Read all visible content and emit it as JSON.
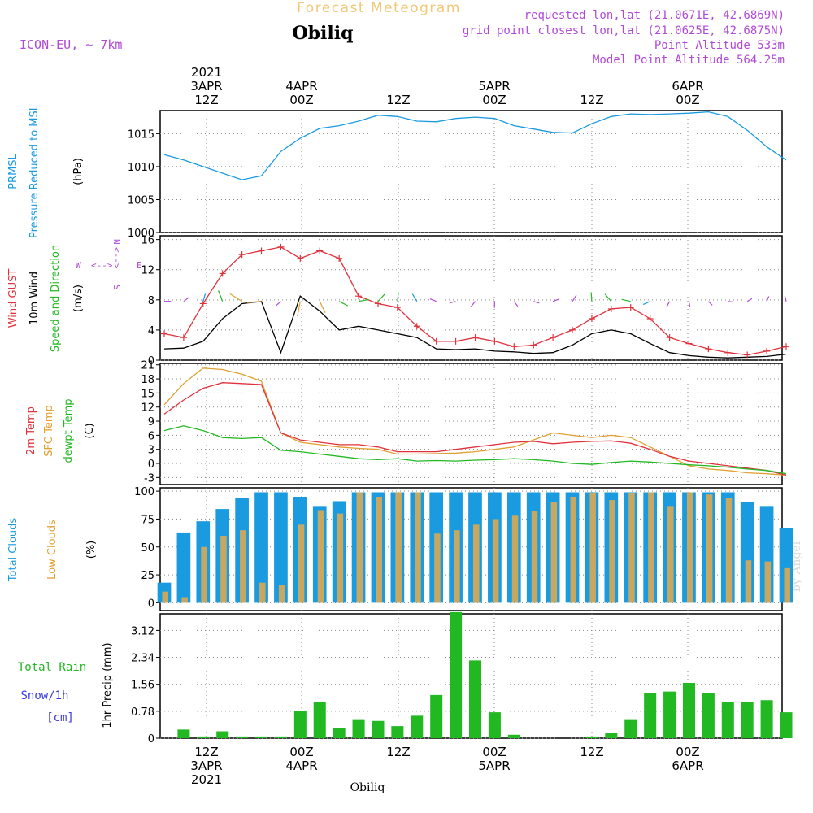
{
  "header": {
    "title": "Forecast Meteogram",
    "location": "Obiliq",
    "model": "ICON-EU, ~ 7km",
    "requested": "requested lon,lat (21.0671E, 42.6869N)",
    "gridpoint": "grid point closest lon,lat (21.0625E, 42.6875N)",
    "point_altitude": "Point Altitude 533m",
    "model_altitude": "Model Point Altitude 564.25m",
    "watermark": "by Angel",
    "footer_location": "Obiliq"
  },
  "time_axis": {
    "top": [
      {
        "lines": [
          "2021",
          "3APR",
          "12Z"
        ]
      },
      {
        "lines": [
          "4APR",
          "00Z"
        ]
      },
      {
        "lines": [
          "12Z"
        ]
      },
      {
        "lines": [
          "5APR",
          "00Z"
        ]
      },
      {
        "lines": [
          "12Z"
        ]
      },
      {
        "lines": [
          "6APR",
          "00Z"
        ]
      }
    ],
    "bottom": [
      {
        "lines": [
          "12Z",
          "3APR",
          "2021"
        ]
      },
      {
        "lines": [
          "00Z",
          "4APR"
        ]
      },
      {
        "lines": [
          "12Z"
        ]
      },
      {
        "lines": [
          "00Z",
          "5APR"
        ]
      },
      {
        "lines": [
          "12Z"
        ]
      },
      {
        "lines": [
          "00Z",
          "6APR"
        ]
      }
    ]
  },
  "panels": {
    "pressure": {
      "labels": [
        {
          "text": "PRMSL",
          "color": "#1a9be0"
        },
        {
          "text": "Pressure Reduced to MSL",
          "color": "#1a9be0"
        },
        {
          "text": "(hPa)",
          "color": "#000000"
        }
      ],
      "ticks": [
        "1000",
        "1005",
        "1010",
        "1015"
      ]
    },
    "wind": {
      "labels": [
        {
          "text": "Wind GUST",
          "color": "#e0323c"
        },
        {
          "text": "10m Wind",
          "color": "#000000"
        },
        {
          "text": "Speed and Direction",
          "color": "#22b822"
        },
        {
          "text": "(m/s)",
          "color": "#000000"
        }
      ],
      "ticks": [
        "0",
        "4",
        "8",
        "12",
        "16"
      ],
      "compass": {
        "n": "N",
        "s": "S",
        "e": "E",
        "w": "W"
      }
    },
    "temp": {
      "labels": [
        {
          "text": "2m Temp",
          "color": "#e0323c"
        },
        {
          "text": "SFC Temp",
          "color": "#e0a030"
        },
        {
          "text": "dewpt Temp",
          "color": "#22b822"
        },
        {
          "text": "(C)",
          "color": "#000000"
        }
      ],
      "ticks": [
        "-3",
        "0",
        "3",
        "6",
        "9",
        "12",
        "15",
        "18",
        "21"
      ]
    },
    "clouds": {
      "labels": [
        {
          "text": "Total Clouds",
          "color": "#1a9be0"
        },
        {
          "text": "Low Clouds",
          "color": "#e0a030"
        },
        {
          "text": "(%)",
          "color": "#000000"
        }
      ],
      "ticks": [
        "0",
        "25",
        "50",
        "75",
        "100"
      ]
    },
    "precip": {
      "labels": [
        {
          "text": "Total   Rain",
          "color": "#22b822"
        },
        {
          "text": "Snow/1h",
          "color": "#3a3ae0"
        },
        {
          "text": "[cm]",
          "color": "#3a3ae0"
        },
        {
          "text": "1hr Precip (mm)",
          "color": "#000000"
        }
      ],
      "ticks": [
        "0",
        "0.78",
        "1.56",
        "2.34",
        "3.12"
      ]
    }
  },
  "colors": {
    "blue": "#1a9be0",
    "red": "#e0323c",
    "orange": "#e0a030",
    "green": "#22b822",
    "purple": "#b04ad8",
    "black": "#000000"
  },
  "chart_data": [
    {
      "type": "line",
      "title": "",
      "ylabel": "PRMSL Pressure Reduced to MSL (hPa)",
      "ylim": [
        1000,
        1018
      ],
      "x_hours": [
        0,
        3,
        6,
        9,
        12,
        15,
        18,
        21,
        24,
        27,
        30,
        33,
        36,
        39,
        42,
        45,
        48,
        51,
        54,
        57,
        60,
        63,
        66,
        69,
        72,
        75,
        78,
        81,
        84,
        87,
        90,
        93,
        96
      ],
      "series": [
        {
          "name": "PRMSL",
          "values": [
            1011.8,
            1011.0,
            1010.0,
            1009.0,
            1008.0,
            1008.6,
            1012.3,
            1014.3,
            1015.8,
            1016.2,
            1016.9,
            1017.8,
            1017.6,
            1016.9,
            1016.8,
            1017.3,
            1017.5,
            1017.3,
            1016.2,
            1015.7,
            1015.2,
            1015.1,
            1016.5,
            1017.6,
            1018.0,
            1017.9,
            1018.0,
            1018.1,
            1018.3,
            1017.6,
            1015.5,
            1013.0,
            1011.0
          ]
        }
      ]
    },
    {
      "type": "line",
      "title": "",
      "ylabel": "Wind GUST / 10m Wind Speed and Direction (m/s)",
      "ylim": [
        0,
        16
      ],
      "x_hours": [
        0,
        3,
        6,
        9,
        12,
        15,
        18,
        21,
        24,
        27,
        30,
        33,
        36,
        39,
        42,
        45,
        48,
        51,
        54,
        57,
        60,
        63,
        66,
        69,
        72,
        75,
        78,
        81,
        84,
        87,
        90,
        93,
        96
      ],
      "series": [
        {
          "name": "Wind GUST",
          "values": [
            3.5,
            3.0,
            7.5,
            11.5,
            14.0,
            14.5,
            15.0,
            13.5,
            14.5,
            13.5,
            8.5,
            7.5,
            7.0,
            4.5,
            2.5,
            2.5,
            3.0,
            2.5,
            1.8,
            2.0,
            3.0,
            4.0,
            5.5,
            6.8,
            7.0,
            5.5,
            3.0,
            2.2,
            1.5,
            1.0,
            0.7,
            1.2,
            1.8
          ]
        },
        {
          "name": "10m Wind",
          "values": [
            1.5,
            1.6,
            2.5,
            5.5,
            7.5,
            7.8,
            1.0,
            8.5,
            6.5,
            4.0,
            4.5,
            4.0,
            3.5,
            3.0,
            1.5,
            1.4,
            1.5,
            1.2,
            1.1,
            0.9,
            1.0,
            2.0,
            3.5,
            4.0,
            3.5,
            2.2,
            1.0,
            0.6,
            0.4,
            0.3,
            0.4,
            0.5,
            0.8
          ]
        }
      ]
    },
    {
      "type": "line",
      "title": "",
      "ylabel": "2m Temp / SFC Temp / dewpt Temp (C)",
      "ylim": [
        -3,
        21
      ],
      "x_hours": [
        0,
        3,
        6,
        9,
        12,
        15,
        18,
        21,
        24,
        27,
        30,
        33,
        36,
        39,
        42,
        45,
        48,
        51,
        54,
        57,
        60,
        63,
        66,
        69,
        72,
        75,
        78,
        81,
        84,
        87,
        90,
        93,
        96
      ],
      "series": [
        {
          "name": "2m Temp",
          "values": [
            10.5,
            13.5,
            16.0,
            17.2,
            17.0,
            16.8,
            6.5,
            5.0,
            4.5,
            4.0,
            4.0,
            3.5,
            2.5,
            2.5,
            2.5,
            3.0,
            3.5,
            4.0,
            4.5,
            4.7,
            4.2,
            4.5,
            4.7,
            4.8,
            4.3,
            3.0,
            1.5,
            0.5,
            0.0,
            -0.5,
            -1.0,
            -1.5,
            -2.5
          ]
        },
        {
          "name": "SFC Temp",
          "values": [
            12.5,
            17.0,
            20.3,
            20.0,
            19.0,
            17.5,
            6.5,
            4.5,
            4.0,
            3.5,
            3.2,
            3.0,
            2.0,
            2.0,
            2.1,
            2.2,
            2.5,
            3.0,
            3.5,
            5.0,
            6.5,
            6.0,
            5.5,
            6.0,
            5.5,
            3.5,
            1.5,
            -0.5,
            -1.2,
            -1.5,
            -2.0,
            -2.2,
            -2.5
          ]
        },
        {
          "name": "dewpt Temp",
          "values": [
            7.0,
            8.0,
            7.0,
            5.5,
            5.3,
            5.5,
            2.8,
            2.5,
            2.0,
            1.5,
            1.0,
            0.8,
            1.0,
            0.5,
            0.6,
            0.5,
            0.7,
            0.8,
            1.0,
            0.8,
            0.5,
            0.0,
            -0.2,
            0.2,
            0.5,
            0.3,
            0.0,
            -0.3,
            -0.5,
            -0.8,
            -1.2,
            -1.5,
            -2.2
          ]
        }
      ]
    },
    {
      "type": "bar",
      "title": "",
      "ylabel": "Total Clouds / Low Clouds (%)",
      "ylim": [
        0,
        100
      ],
      "x_hours": [
        0,
        3,
        6,
        9,
        12,
        15,
        18,
        21,
        24,
        27,
        30,
        33,
        36,
        39,
        42,
        45,
        48,
        51,
        54,
        57,
        60,
        63,
        66,
        69,
        72,
        75,
        78,
        81,
        84,
        87,
        90,
        93,
        96
      ],
      "series": [
        {
          "name": "Total Clouds",
          "values": [
            18,
            63,
            73,
            84,
            94,
            99,
            99,
            95,
            86,
            91,
            99,
            99,
            99,
            99,
            99,
            99,
            99,
            99,
            99,
            99,
            99,
            99,
            99,
            99,
            99,
            99,
            99,
            99,
            99,
            99,
            90,
            86,
            67
          ]
        },
        {
          "name": "Low Clouds",
          "values": [
            10,
            5,
            50,
            60,
            65,
            18,
            16,
            70,
            83,
            80,
            99,
            95,
            99,
            99,
            62,
            65,
            70,
            75,
            78,
            82,
            90,
            95,
            98,
            92,
            98,
            99,
            86,
            99,
            97,
            94,
            38,
            37,
            31
          ]
        }
      ]
    },
    {
      "type": "bar",
      "title": "",
      "ylabel": "1hr Precip (mm)",
      "ylim": [
        0,
        3.5
      ],
      "x_hours": [
        0,
        3,
        6,
        9,
        12,
        15,
        18,
        21,
        24,
        27,
        30,
        33,
        36,
        39,
        42,
        45,
        48,
        51,
        54,
        57,
        60,
        63,
        66,
        69,
        72,
        75,
        78,
        81,
        84,
        87,
        90,
        93,
        96
      ],
      "series": [
        {
          "name": "Total Rain",
          "values": [
            0.0,
            0.25,
            0.05,
            0.2,
            0.05,
            0.05,
            0.05,
            0.8,
            1.05,
            0.3,
            0.55,
            0.5,
            0.35,
            0.65,
            1.25,
            3.65,
            2.25,
            0.75,
            0.1,
            0.0,
            0.0,
            0.0,
            0.05,
            0.15,
            0.55,
            1.3,
            1.35,
            1.6,
            1.3,
            1.05,
            1.05,
            1.1,
            0.75
          ]
        }
      ]
    }
  ]
}
